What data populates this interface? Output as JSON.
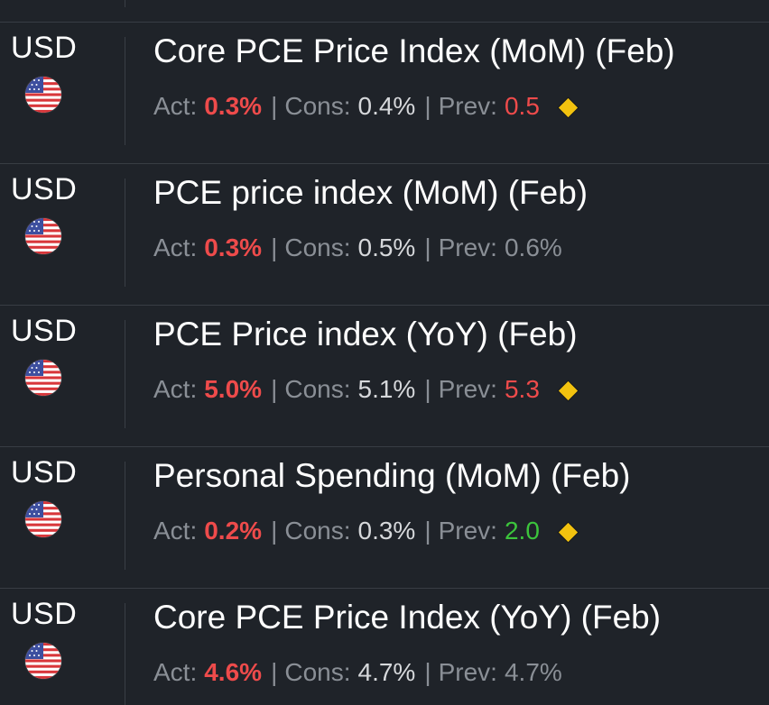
{
  "events": [
    {
      "currency": "USD",
      "flag": "us-flag-icon",
      "title": "Core PCE Price Index (MoM) (Feb)",
      "act_label": "Act:",
      "act_value": "0.3%",
      "cons_label": "Cons:",
      "cons_value": "0.4%",
      "prev_label": "Prev:",
      "prev_value": "0.5",
      "prev_color": "red",
      "revised_marker": true
    },
    {
      "currency": "USD",
      "flag": "us-flag-icon",
      "title": "PCE price index (MoM) (Feb)",
      "act_label": "Act:",
      "act_value": "0.3%",
      "cons_label": "Cons:",
      "cons_value": "0.5%",
      "prev_label": "Prev:",
      "prev_value": "0.6%",
      "prev_color": "gray",
      "revised_marker": false
    },
    {
      "currency": "USD",
      "flag": "us-flag-icon",
      "title": "PCE Price index (YoY) (Feb)",
      "act_label": "Act:",
      "act_value": "5.0%",
      "cons_label": "Cons:",
      "cons_value": "5.1%",
      "prev_label": "Prev:",
      "prev_value": "5.3",
      "prev_color": "red",
      "revised_marker": true
    },
    {
      "currency": "USD",
      "flag": "us-flag-icon",
      "title": "Personal Spending (MoM) (Feb)",
      "act_label": "Act:",
      "act_value": "0.2%",
      "cons_label": "Cons:",
      "cons_value": "0.3%",
      "prev_label": "Prev:",
      "prev_value": "2.0",
      "prev_color": "green",
      "revised_marker": true
    },
    {
      "currency": "USD",
      "flag": "us-flag-icon",
      "title": "Core PCE Price Index (YoY) (Feb)",
      "act_label": "Act:",
      "act_value": "4.6%",
      "cons_label": "Cons:",
      "cons_value": "4.7%",
      "prev_label": "Prev:",
      "prev_value": "4.7%",
      "prev_color": "gray",
      "revised_marker": false
    }
  ],
  "colors": {
    "background": "#1f2329",
    "actual_red": "#ee4b4b",
    "prev_green": "#3cc43c",
    "label_gray": "#8a8f96",
    "revised_marker": "#f2c20f"
  },
  "separator": "|"
}
